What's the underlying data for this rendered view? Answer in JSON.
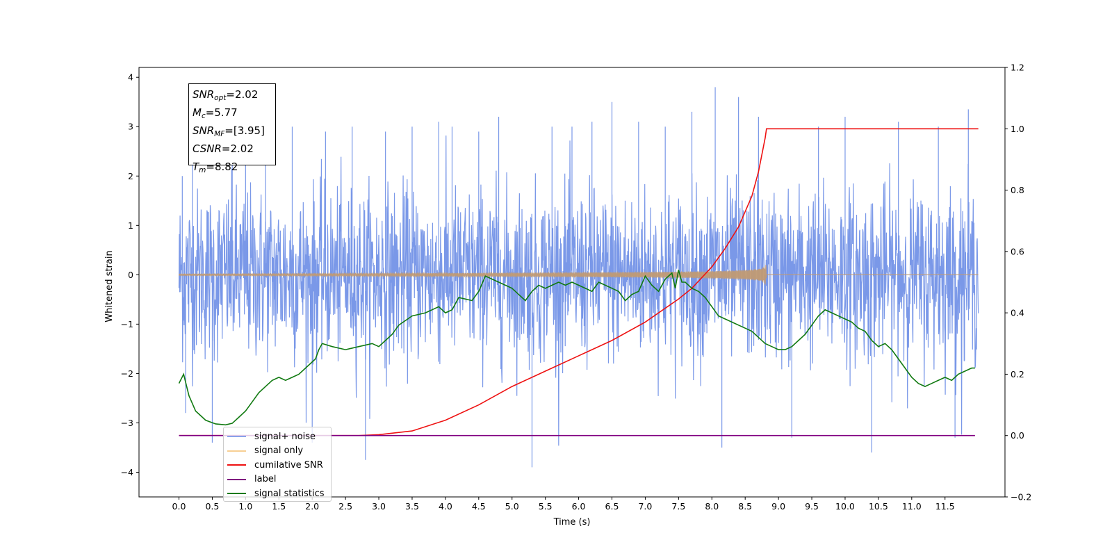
{
  "chart_data": {
    "type": "line",
    "title": "",
    "xlabel": "Time (s)",
    "ylabel": "Whitened strain",
    "y2label": "",
    "xlim": [
      -0.6,
      12.4
    ],
    "ylim": [
      -4.5,
      4.2
    ],
    "y2lim": [
      -0.2,
      1.2
    ],
    "x_ticks": [
      "0.0",
      "0.5",
      "1.0",
      "1.5",
      "2.0",
      "2.5",
      "3.0",
      "3.5",
      "4.0",
      "4.5",
      "5.0",
      "5.5",
      "6.0",
      "6.5",
      "7.0",
      "7.5",
      "8.0",
      "8.5",
      "9.0",
      "9.5",
      "10.0",
      "10.5",
      "11.0",
      "11.5"
    ],
    "y_ticks": [
      "4",
      "3",
      "2",
      "1",
      "0",
      "−1",
      "−2",
      "−3",
      "−4"
    ],
    "y2_ticks": [
      "1.2",
      "1.0",
      "0.8",
      "0.6",
      "0.4",
      "0.2",
      "0.0",
      "−0.2"
    ],
    "grid": false,
    "legend_placement": "lower-left",
    "annotation": [
      {
        "var": "SNR",
        "sub": "opt",
        "value": "=2.02"
      },
      {
        "var": "M",
        "sub": "c",
        "value": "=5.77"
      },
      {
        "var": "SNR",
        "sub": "MF",
        "value": "=[3.95]"
      },
      {
        "var": "CSNR",
        "sub": "",
        "value": "=2.02"
      },
      {
        "var": "T",
        "sub": "m",
        "value": "=8.82"
      }
    ],
    "series": [
      {
        "name": "signal+ noise",
        "color": "#6f8fe6",
        "axis": "left",
        "noise_sd": 1.05,
        "x_range": [
          0.0,
          12.0
        ],
        "peaks_x": [
          0.05,
          0.1,
          0.2,
          0.5,
          0.8,
          1.0,
          1.3,
          1.7,
          2.0,
          2.2,
          2.6,
          2.8,
          3.1,
          3.5,
          3.9,
          4.1,
          4.5,
          4.8,
          5.3,
          5.6,
          5.9,
          6.2,
          6.5,
          6.9,
          7.3,
          7.7,
          8.05,
          8.15,
          8.4,
          8.7,
          9.2,
          9.6,
          10.0,
          10.4,
          10.8,
          11.4,
          11.65,
          11.85
        ],
        "peaks_y": [
          2.0,
          -2.8,
          2.25,
          -3.4,
          2.6,
          2.8,
          3.0,
          3.0,
          -3.4,
          2.9,
          3.0,
          -3.75,
          2.9,
          3.0,
          3.1,
          3.0,
          2.9,
          3.2,
          -3.9,
          3.0,
          3.0,
          3.1,
          3.5,
          3.1,
          3.0,
          3.3,
          3.8,
          -3.5,
          3.6,
          3.2,
          -3.3,
          3.0,
          3.2,
          -3.6,
          3.1,
          3.0,
          -3.3,
          3.35
        ]
      },
      {
        "name": "signal only",
        "color": "#f5c07a",
        "axis": "left",
        "chirp_end": 8.82,
        "amplitude_end": 0.2
      },
      {
        "name": "cumilative SNR",
        "color": "#ee1111",
        "axis": "right",
        "x": [
          0.0,
          2.7,
          3.0,
          3.5,
          4.0,
          4.5,
          5.0,
          5.5,
          6.0,
          6.5,
          7.0,
          7.5,
          7.7,
          8.0,
          8.2,
          8.4,
          8.6,
          8.7,
          8.8,
          8.82,
          12.0
        ],
        "y": [
          0.0,
          0.0,
          0.003,
          0.015,
          0.05,
          0.1,
          0.16,
          0.21,
          0.26,
          0.31,
          0.37,
          0.445,
          0.48,
          0.55,
          0.61,
          0.68,
          0.78,
          0.86,
          0.97,
          1.0,
          1.0
        ]
      },
      {
        "name": "label",
        "color": "#800080",
        "axis": "right",
        "x": [
          0.0,
          11.95
        ],
        "y": [
          0.0,
          0.0
        ]
      },
      {
        "name": "signal only",
        "color": "#000000",
        "axis": "right",
        "hidden": true
      },
      {
        "name": "signal statistics",
        "color": "#117a11",
        "axis": "right",
        "x": [
          0.0,
          0.07,
          0.15,
          0.25,
          0.4,
          0.55,
          0.7,
          0.8,
          0.9,
          1.0,
          1.1,
          1.2,
          1.3,
          1.4,
          1.5,
          1.6,
          1.7,
          1.8,
          1.9,
          2.0,
          2.05,
          2.1,
          2.15,
          2.3,
          2.5,
          2.7,
          2.9,
          3.0,
          3.1,
          3.2,
          3.3,
          3.5,
          3.7,
          3.9,
          4.0,
          4.1,
          4.2,
          4.4,
          4.5,
          4.6,
          4.7,
          4.8,
          4.9,
          5.0,
          5.1,
          5.2,
          5.3,
          5.4,
          5.5,
          5.6,
          5.7,
          5.8,
          5.9,
          6.0,
          6.2,
          6.3,
          6.4,
          6.5,
          6.6,
          6.7,
          6.8,
          6.9,
          7.0,
          7.1,
          7.2,
          7.3,
          7.4,
          7.45,
          7.5,
          7.55,
          7.6,
          7.7,
          7.8,
          7.9,
          8.0,
          8.1,
          8.2,
          8.3,
          8.4,
          8.5,
          8.6,
          8.7,
          8.8,
          8.9,
          9.0,
          9.1,
          9.2,
          9.3,
          9.4,
          9.5,
          9.6,
          9.7,
          9.8,
          9.9,
          10.0,
          10.1,
          10.2,
          10.3,
          10.4,
          10.5,
          10.6,
          10.7,
          10.8,
          10.9,
          11.0,
          11.1,
          11.2,
          11.3,
          11.4,
          11.5,
          11.6,
          11.7,
          11.8,
          11.9,
          11.95
        ],
        "y": [
          0.17,
          0.2,
          0.13,
          0.08,
          0.05,
          0.038,
          0.035,
          0.04,
          0.06,
          0.08,
          0.11,
          0.14,
          0.16,
          0.18,
          0.19,
          0.18,
          0.19,
          0.2,
          0.22,
          0.24,
          0.25,
          0.28,
          0.3,
          0.29,
          0.28,
          0.29,
          0.3,
          0.29,
          0.31,
          0.33,
          0.36,
          0.39,
          0.4,
          0.42,
          0.4,
          0.41,
          0.45,
          0.44,
          0.47,
          0.52,
          0.51,
          0.5,
          0.49,
          0.48,
          0.46,
          0.44,
          0.47,
          0.49,
          0.48,
          0.49,
          0.5,
          0.49,
          0.5,
          0.49,
          0.47,
          0.5,
          0.49,
          0.48,
          0.47,
          0.44,
          0.46,
          0.47,
          0.52,
          0.49,
          0.47,
          0.51,
          0.53,
          0.48,
          0.54,
          0.5,
          0.5,
          0.48,
          0.47,
          0.45,
          0.42,
          0.39,
          0.38,
          0.37,
          0.36,
          0.35,
          0.34,
          0.32,
          0.3,
          0.29,
          0.28,
          0.28,
          0.29,
          0.31,
          0.33,
          0.36,
          0.39,
          0.41,
          0.4,
          0.39,
          0.38,
          0.37,
          0.35,
          0.34,
          0.31,
          0.29,
          0.3,
          0.28,
          0.25,
          0.22,
          0.19,
          0.17,
          0.16,
          0.17,
          0.18,
          0.19,
          0.18,
          0.2,
          0.21,
          0.22,
          0.22
        ]
      }
    ]
  }
}
